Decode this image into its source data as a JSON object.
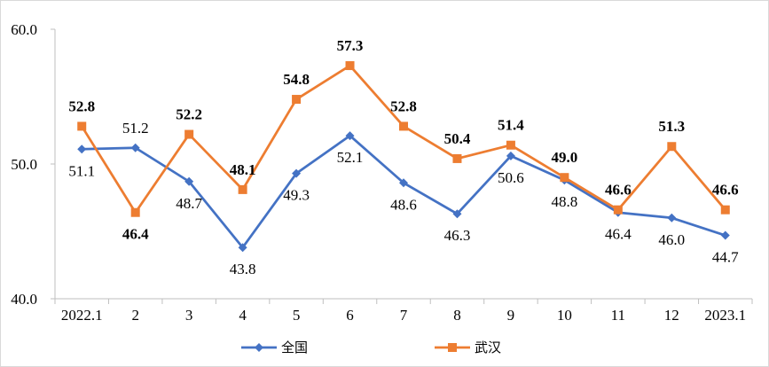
{
  "chart_data": {
    "type": "line",
    "categories": [
      "2022.1",
      "2",
      "3",
      "4",
      "5",
      "6",
      "7",
      "8",
      "9",
      "10",
      "11",
      "12",
      "2023.1"
    ],
    "ylim": [
      40.0,
      60.0
    ],
    "yticks": [
      "40.0",
      "50.0",
      "60.0"
    ],
    "grid": false,
    "legend_position": "bottom",
    "series": [
      {
        "name": "全国",
        "color": "#4472C4",
        "marker": "diamond",
        "label_style": "normal",
        "values": [
          51.1,
          51.2,
          48.7,
          43.8,
          49.3,
          52.1,
          48.6,
          46.3,
          50.6,
          48.8,
          46.4,
          46.0,
          44.7
        ],
        "labels": [
          "51.1",
          "51.2",
          "48.7",
          "43.8",
          "49.3",
          "52.1",
          "48.6",
          "46.3",
          "50.6",
          "48.8",
          "46.4",
          "46.0",
          "44.7"
        ]
      },
      {
        "name": "武汉",
        "color": "#ED7D31",
        "marker": "square",
        "label_style": "bold",
        "values": [
          52.8,
          46.4,
          52.2,
          48.1,
          54.8,
          57.3,
          52.8,
          50.4,
          51.4,
          49.0,
          46.6,
          51.3,
          46.6
        ],
        "labels": [
          "52.8",
          "46.4",
          "52.2",
          "48.1",
          "54.8",
          "57.3",
          "52.8",
          "50.4",
          "51.4",
          "49.0",
          "46.6",
          "51.3",
          "46.6"
        ]
      }
    ]
  }
}
